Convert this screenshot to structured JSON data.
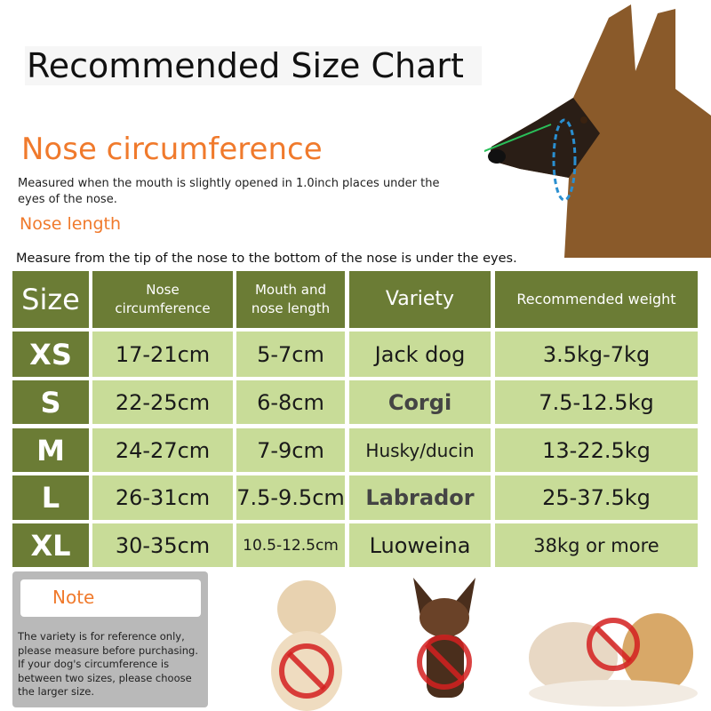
{
  "title": "Recommended Size Chart",
  "nose_circumference": {
    "heading": "Nose circumference",
    "description": "Measured when the mouth is slightly opened in 1.0inch places under the eyes of the nose."
  },
  "nose_length": {
    "heading": "Nose length",
    "description": "Measure from the tip of the nose to the bottom of the nose is under the eyes."
  },
  "table": {
    "headers": [
      "Size",
      "Nose circumference",
      "Mouth and nose length",
      "Variety",
      "Recommended weight"
    ],
    "rows": [
      [
        "XS",
        "17-21cm",
        "5-7cm",
        "Jack dog",
        "3.5kg-7kg"
      ],
      [
        "S",
        "22-25cm",
        "6-8cm",
        "Corgi",
        "7.5-12.5kg"
      ],
      [
        "M",
        "24-27cm",
        "7-9cm",
        "Husky/ducin",
        "13-22.5kg"
      ],
      [
        "L",
        "26-31cm",
        "7.5-9.5cm",
        "Labrador",
        "25-37.5kg"
      ],
      [
        "XL",
        "30-35cm",
        "10.5-12.5cm",
        "Luoweina",
        "38kg or more"
      ]
    ]
  },
  "note": {
    "label": "Note",
    "text": "The variety is for reference only, please measure before purchasing. If your dog's circumference is between two sizes, please choose the larger size."
  },
  "colors": {
    "header_green": "#6b7c35",
    "cell_green": "#c8dc98",
    "accent_orange": "#f07a2c",
    "measure_blue": "#2a8fd0",
    "prohibit_red": "#d42020"
  },
  "icons": [
    "dog-head-measure-illustration",
    "pekingese-prohibited-icon",
    "chihuahua-prohibited-icon",
    "bulldogs-prohibited-icon"
  ]
}
